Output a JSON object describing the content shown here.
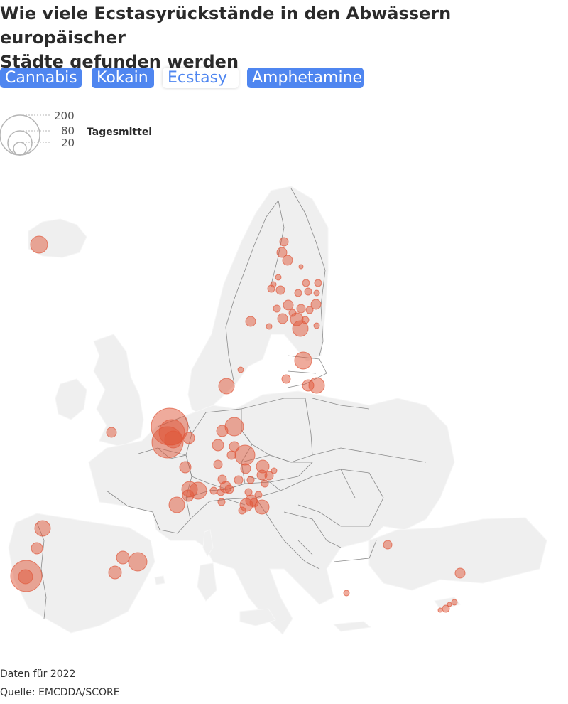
{
  "header": {
    "title_line1": "Wie viele Ecstasyrückstände in den Abwässern europäischer",
    "title_line2": "Städte gefunden werden"
  },
  "tabs": [
    {
      "label": "Cannabis",
      "active": true
    },
    {
      "label": "Kokain",
      "active": true
    },
    {
      "label": "Ecstasy",
      "active": false
    },
    {
      "label": "Amphetamine",
      "active": true
    }
  ],
  "legend": {
    "title": "Tagesmittel",
    "sizes": [
      "200",
      "80",
      "20"
    ]
  },
  "footer": {
    "data_year": "Daten für 2022",
    "source": "Quelle: EMCDDA/SCORE"
  },
  "colors": {
    "accent": "#4f86f0",
    "bubble": "#e0573a",
    "land": "#efefef",
    "border": "#8a8a8a"
  }
}
